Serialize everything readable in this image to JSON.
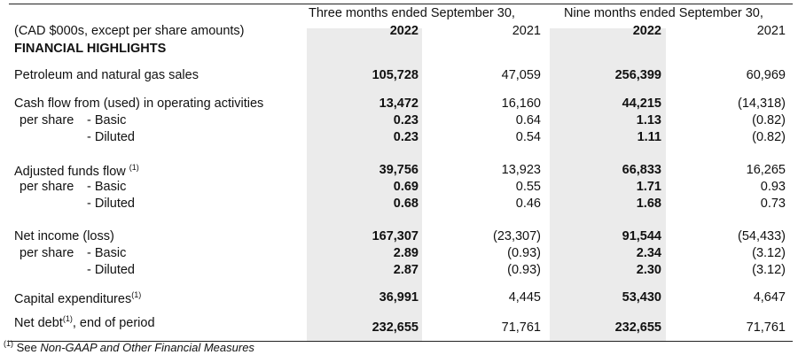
{
  "header": {
    "caption": "(CAD $000s, except per share amounts)",
    "group1": "Three months ended September 30,",
    "group2": "Nine months ended September 30,",
    "years": [
      "2022",
      "2021",
      "2022",
      "2021"
    ]
  },
  "section_title": "FINANCIAL HIGHLIGHTS",
  "rows": {
    "sales": {
      "label": "Petroleum and natural gas sales",
      "values": [
        "105,728",
        "47,059",
        "256,399",
        "60,969"
      ]
    },
    "cfo": {
      "label": "Cash flow from (used) in operating activities",
      "values": [
        "13,472",
        "16,160",
        "44,215",
        "(14,318)"
      ]
    },
    "cfo_basic": {
      "prefix": "per share",
      "label": "- Basic",
      "values": [
        "0.23",
        "0.64",
        "1.13",
        "(0.82)"
      ]
    },
    "cfo_diluted": {
      "label": "- Diluted",
      "values": [
        "0.23",
        "0.54",
        "1.11",
        "(0.82)"
      ]
    },
    "aff": {
      "label": "Adjusted funds flow",
      "note": "(1)",
      "values": [
        "39,756",
        "13,923",
        "66,833",
        "16,265"
      ]
    },
    "aff_basic": {
      "prefix": "per share",
      "label": "- Basic",
      "values": [
        "0.69",
        "0.55",
        "1.71",
        "0.93"
      ]
    },
    "aff_diluted": {
      "label": "- Diluted",
      "values": [
        "0.68",
        "0.46",
        "1.68",
        "0.73"
      ]
    },
    "ni": {
      "label": "Net income (loss)",
      "values": [
        "167,307",
        "(23,307)",
        "91,544",
        "(54,433)"
      ]
    },
    "ni_basic": {
      "prefix": "per share",
      "label": "- Basic",
      "values": [
        "2.89",
        "(0.93)",
        "2.34",
        "(3.12)"
      ]
    },
    "ni_diluted": {
      "label": "- Diluted",
      "values": [
        "2.87",
        "(0.93)",
        "2.30",
        "(3.12)"
      ]
    },
    "capex": {
      "label": "Capital expenditures",
      "note": "(1)",
      "values": [
        "36,991",
        "4,445",
        "53,430",
        "4,647"
      ]
    },
    "debt": {
      "label": "Net debt",
      "note": "(1)",
      "suffix": ", end of period",
      "values": [
        "232,655",
        "71,761",
        "232,655",
        "71,761"
      ]
    }
  },
  "footnote": {
    "marker": "(1)",
    "text": " See ",
    "italic": "Non-GAAP and Other Financial Measures"
  }
}
